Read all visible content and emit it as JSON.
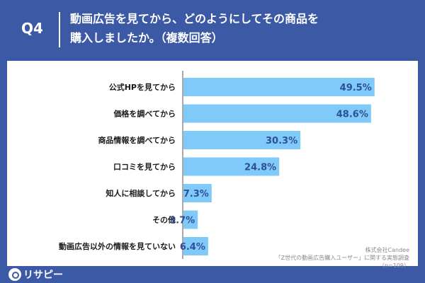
{
  "header": {
    "q_label": "Q4",
    "title_line1": "動画広告を見てから、どのようにしてその商品を",
    "title_line2": "購入しましたか。（複数回答）"
  },
  "source": {
    "line1": "株式会社Candee",
    "line2": "「Z世代の動画広告購入ユーザー」に関する実態調査",
    "line3": "（n=109）"
  },
  "logo": {
    "icon": "location-pin-icon",
    "text": "リサピー"
  },
  "colors": {
    "background": "#3c59a5",
    "bar": "#80cafa",
    "bar_text": "#2e5096",
    "axis": "#555555"
  },
  "chart_data": {
    "type": "bar",
    "orientation": "horizontal",
    "categories": [
      "公式HPを見てから",
      "価格を調べてから",
      "商品情報を調べてから",
      "口コミを見てから",
      "知人に相談してから",
      "その他",
      "動画広告以外の情報を見ていない"
    ],
    "values": [
      49.5,
      48.6,
      30.3,
      24.8,
      7.3,
      3.7,
      6.4
    ],
    "value_labels": [
      "49.5%",
      "48.6%",
      "30.3%",
      "24.8%",
      "7.3%",
      "3.7%",
      "6.4%"
    ],
    "unit": "%",
    "xlim": [
      0,
      50
    ],
    "title": "",
    "xlabel": "",
    "ylabel": "",
    "grid": false,
    "legend": "none"
  }
}
